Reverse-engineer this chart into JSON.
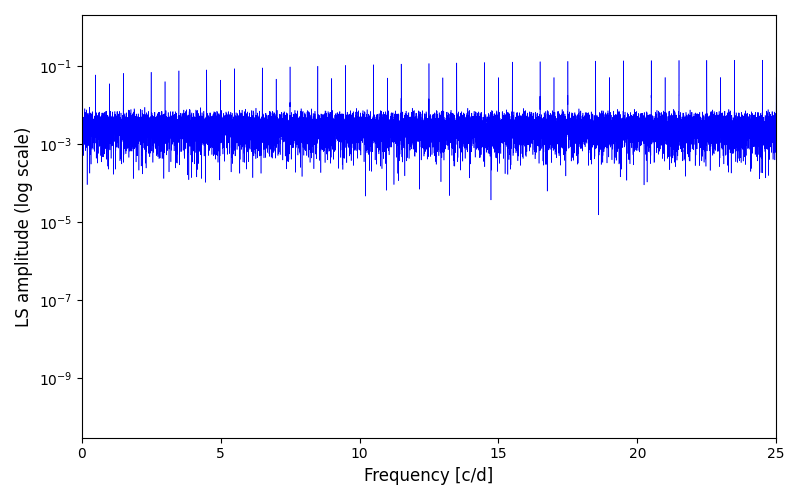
{
  "xlabel": "Frequency [c/d]",
  "ylabel": "LS amplitude (log scale)",
  "line_color": "#0000ff",
  "xlim": [
    0,
    25
  ],
  "ylim": [
    3e-11,
    2.0
  ],
  "yticks": [
    1e-09,
    1e-07,
    1e-05,
    0.001,
    0.1
  ],
  "xticks": [
    0,
    5,
    10,
    15,
    20,
    25
  ],
  "figsize": [
    8.0,
    5.0
  ],
  "dpi": 100,
  "seed": 12345,
  "n_points": 15000,
  "freq_max": 25.0
}
